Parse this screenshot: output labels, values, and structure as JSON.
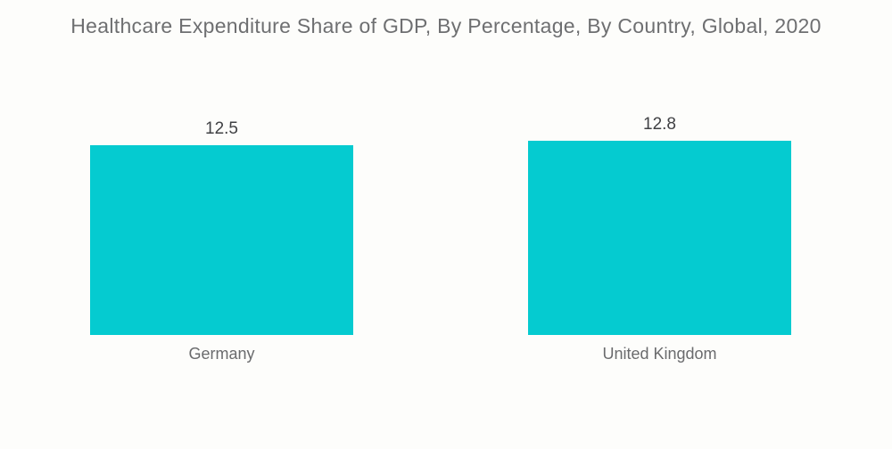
{
  "page": {
    "background": "#FDFDFB"
  },
  "chart_data": {
    "type": "bar",
    "title": "Healthcare Expenditure Share of GDP, By Percentage, By Country, Global, 2020",
    "categories": [
      "Germany",
      "United Kingdom"
    ],
    "values": [
      12.5,
      12.8
    ],
    "value_labels": [
      "12.5",
      "12.8"
    ],
    "xlabel": "",
    "ylabel": "",
    "ylim": [
      0,
      12.8
    ],
    "grid": false,
    "legend": false,
    "bar_color": "#05CBD0",
    "title_color": "#6E6F71",
    "value_label_color": "#404144",
    "category_label_color": "#6A6B6D"
  }
}
